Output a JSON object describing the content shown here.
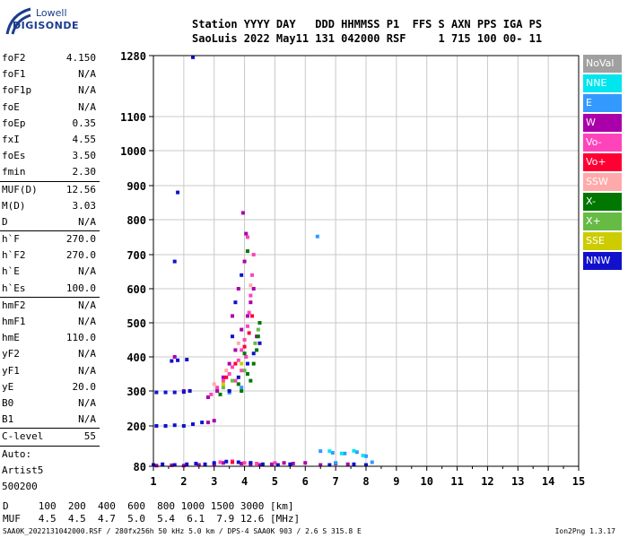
{
  "logo": {
    "line1": "Lowell",
    "line2": "DIGISONDE"
  },
  "header": {
    "line1": "Station YYYY DAY   DDD HHMMSS P1  FFS S AXN PPS IGA PS",
    "line2": "SaoLuis 2022 May11 131 042000 RSF     1 715 100 00- 11"
  },
  "params": [
    {
      "label": "foF2",
      "value": "4.150"
    },
    {
      "label": "foF1",
      "value": "N/A"
    },
    {
      "label": "foF1p",
      "value": "N/A"
    },
    {
      "label": "foE",
      "value": "N/A"
    },
    {
      "label": "foEp",
      "value": "0.35"
    },
    {
      "label": "fxI",
      "value": "4.55"
    },
    {
      "label": "foEs",
      "value": "3.50"
    },
    {
      "label": "fmin",
      "value": "2.30",
      "sep": true
    },
    {
      "label": "MUF(D)",
      "value": "12.56"
    },
    {
      "label": "M(D)",
      "value": "3.03"
    },
    {
      "label": "D",
      "value": "N/A",
      "sep": true
    },
    {
      "label": "h`F",
      "value": "270.0"
    },
    {
      "label": "h`F2",
      "value": "270.0"
    },
    {
      "label": "h`E",
      "value": "N/A"
    },
    {
      "label": "h`Es",
      "value": "100.0",
      "sep": true
    },
    {
      "label": "hmF2",
      "value": "N/A"
    },
    {
      "label": "hmF1",
      "value": "N/A"
    },
    {
      "label": "hmE",
      "value": "110.0"
    },
    {
      "label": "yF2",
      "value": "N/A"
    },
    {
      "label": "yF1",
      "value": "N/A"
    },
    {
      "label": "yE",
      "value": "20.0"
    },
    {
      "label": "B0",
      "value": "N/A"
    },
    {
      "label": "B1",
      "value": "N/A",
      "sep": true
    },
    {
      "label": "C-level",
      "value": "55",
      "sep": true
    },
    {
      "label": "Auto:",
      "value": ""
    },
    {
      "label": "Artist5",
      "value": ""
    },
    {
      "label": "500200",
      "value": ""
    }
  ],
  "legend": [
    {
      "label": "NoVal",
      "color": "#a0a0a0"
    },
    {
      "label": "NNE",
      "color": "#00e5ee"
    },
    {
      "label": "E",
      "color": "#3399ff"
    },
    {
      "label": "W",
      "color": "#aa00aa"
    },
    {
      "label": "Vo-",
      "color": "#ff44bb"
    },
    {
      "label": "Vo+",
      "color": "#ff0033"
    },
    {
      "label": "SSW",
      "color": "#ffaaaa"
    },
    {
      "label": "X-",
      "color": "#007700"
    },
    {
      "label": "X+",
      "color": "#66bb44"
    },
    {
      "label": "SSE",
      "color": "#cccc00"
    },
    {
      "label": "NNW",
      "color": "#1111cc"
    }
  ],
  "footer": {
    "d_line": "D     100  200  400  600  800 1000 1500 3000 [km]",
    "muf_line": "MUF   4.5  4.5  4.7  5.0  5.4  6.1  7.9 12.6 [MHz]",
    "source": "SAA0K_2022131042000.RSF / 280fx256h 50 kHz 5.0 km / DPS-4 SAA0K 903 / 2.6 S 315.8 E",
    "version": "Ion2Png 1.3.17"
  },
  "chart_data": {
    "type": "scatter",
    "title": "",
    "xlabel": "",
    "ylabel": "",
    "xlim": [
      1,
      15
    ],
    "ylim": [
      80,
      1280
    ],
    "x_ticks": [
      1,
      2,
      3,
      4,
      5,
      6,
      7,
      8,
      9,
      10,
      11,
      12,
      13,
      14,
      15
    ],
    "y_ticks": [
      80,
      200,
      300,
      400,
      500,
      600,
      700,
      800,
      900,
      1000,
      1100,
      1280
    ],
    "grid": true,
    "legend_position": "right",
    "series": [
      {
        "name": "W",
        "color": "#aa00aa",
        "points": [
          [
            1.1,
            82
          ],
          [
            1.6,
            83
          ],
          [
            2.0,
            82
          ],
          [
            2.5,
            84
          ],
          [
            3.0,
            86
          ],
          [
            3.3,
            90
          ],
          [
            3.6,
            92
          ],
          [
            3.9,
            88
          ],
          [
            4.2,
            86
          ],
          [
            4.5,
            84
          ],
          [
            4.9,
            86
          ],
          [
            5.3,
            90
          ],
          [
            5.6,
            88
          ],
          [
            6.0,
            90
          ],
          [
            6.5,
            84
          ],
          [
            7.0,
            88
          ],
          [
            7.4,
            86
          ],
          [
            2.8,
            282
          ],
          [
            3.1,
            300
          ],
          [
            3.3,
            340
          ],
          [
            3.5,
            380
          ],
          [
            3.7,
            420
          ],
          [
            3.9,
            480
          ],
          [
            4.1,
            520
          ],
          [
            4.2,
            560
          ],
          [
            4.3,
            600
          ],
          [
            3.8,
            600
          ],
          [
            4.0,
            680
          ],
          [
            4.05,
            760
          ],
          [
            3.95,
            820
          ],
          [
            2.8,
            210
          ],
          [
            3.0,
            215
          ],
          [
            2.0,
            300
          ],
          [
            1.7,
            400
          ],
          [
            4.4,
            460
          ],
          [
            3.6,
            520
          ]
        ]
      },
      {
        "name": "Vo-",
        "color": "#ff44bb",
        "points": [
          [
            2.9,
            290
          ],
          [
            3.1,
            310
          ],
          [
            3.3,
            330
          ],
          [
            3.5,
            350
          ],
          [
            3.6,
            370
          ],
          [
            3.8,
            390
          ],
          [
            3.9,
            420
          ],
          [
            4.0,
            450
          ],
          [
            4.1,
            490
          ],
          [
            4.15,
            530
          ],
          [
            4.2,
            580
          ],
          [
            4.25,
            640
          ],
          [
            4.3,
            700
          ],
          [
            3.7,
            330
          ],
          [
            3.9,
            360
          ],
          [
            4.05,
            400
          ],
          [
            3.2,
            92
          ],
          [
            3.6,
            95
          ],
          [
            4.0,
            90
          ],
          [
            4.4,
            88
          ],
          [
            5.0,
            90
          ],
          [
            4.1,
            750
          ]
        ]
      },
      {
        "name": "Vo+",
        "color": "#ff0033",
        "points": [
          [
            3.4,
            340
          ],
          [
            3.7,
            380
          ],
          [
            4.0,
            430
          ],
          [
            4.15,
            470
          ],
          [
            4.25,
            520
          ],
          [
            3.6,
            92
          ],
          [
            4.2,
            90
          ]
        ]
      },
      {
        "name": "X-",
        "color": "#007700",
        "points": [
          [
            3.2,
            290
          ],
          [
            3.5,
            300
          ],
          [
            3.8,
            320
          ],
          [
            4.1,
            350
          ],
          [
            4.3,
            380
          ],
          [
            4.4,
            420
          ],
          [
            4.45,
            460
          ],
          [
            4.5,
            500
          ],
          [
            3.9,
            300
          ],
          [
            4.2,
            330
          ],
          [
            4.0,
            410
          ],
          [
            4.1,
            710
          ]
        ]
      },
      {
        "name": "X+",
        "color": "#66bb44",
        "points": [
          [
            3.3,
            310
          ],
          [
            3.6,
            330
          ],
          [
            4.0,
            360
          ],
          [
            4.35,
            440
          ],
          [
            4.45,
            480
          ]
        ]
      },
      {
        "name": "SSW",
        "color": "#ffaaaa",
        "points": [
          [
            3.0,
            320
          ],
          [
            3.4,
            360
          ],
          [
            3.8,
            440
          ],
          [
            4.2,
            610
          ]
        ]
      },
      {
        "name": "E",
        "color": "#3399ff",
        "points": [
          [
            6.4,
            752
          ],
          [
            6.5,
            125
          ],
          [
            6.9,
            120
          ],
          [
            7.3,
            118
          ],
          [
            7.7,
            122
          ],
          [
            8.0,
            110
          ],
          [
            8.2,
            92
          ],
          [
            7.0,
            90
          ],
          [
            3.5,
            295
          ],
          [
            3.9,
            310
          ]
        ]
      },
      {
        "name": "NNE",
        "color": "#00e5ee",
        "points": [
          [
            6.8,
            125
          ],
          [
            7.2,
            118
          ],
          [
            7.6,
            126
          ],
          [
            7.9,
            112
          ]
        ]
      },
      {
        "name": "NNW",
        "color": "#1111cc",
        "points": [
          [
            1.0,
            84
          ],
          [
            1.3,
            86
          ],
          [
            1.7,
            84
          ],
          [
            2.1,
            86
          ],
          [
            2.4,
            88
          ],
          [
            2.7,
            86
          ],
          [
            3.0,
            90
          ],
          [
            3.4,
            94
          ],
          [
            3.8,
            92
          ],
          [
            4.2,
            90
          ],
          [
            4.6,
            86
          ],
          [
            5.1,
            84
          ],
          [
            5.5,
            86
          ],
          [
            6.8,
            84
          ],
          [
            7.6,
            86
          ],
          [
            8.0,
            84
          ],
          [
            1.1,
            200
          ],
          [
            1.4,
            200
          ],
          [
            1.7,
            202
          ],
          [
            2.0,
            200
          ],
          [
            2.3,
            205
          ],
          [
            2.6,
            210
          ],
          [
            1.1,
            296
          ],
          [
            1.4,
            296
          ],
          [
            1.7,
            296
          ],
          [
            2.0,
            297
          ],
          [
            2.2,
            300
          ],
          [
            1.6,
            388
          ],
          [
            1.8,
            390
          ],
          [
            2.1,
            392
          ],
          [
            1.7,
            680
          ],
          [
            1.8,
            880
          ],
          [
            3.5,
            300
          ],
          [
            3.8,
            340
          ],
          [
            4.1,
            380
          ],
          [
            4.3,
            410
          ],
          [
            4.5,
            440
          ],
          [
            3.7,
            560
          ],
          [
            3.9,
            640
          ],
          [
            3.6,
            460
          ],
          [
            2.3,
            1275
          ]
        ]
      },
      {
        "name": "SSE",
        "color": "#cccc00",
        "points": [
          [
            3.3,
            320
          ],
          [
            3.9,
            380
          ]
        ]
      }
    ]
  }
}
